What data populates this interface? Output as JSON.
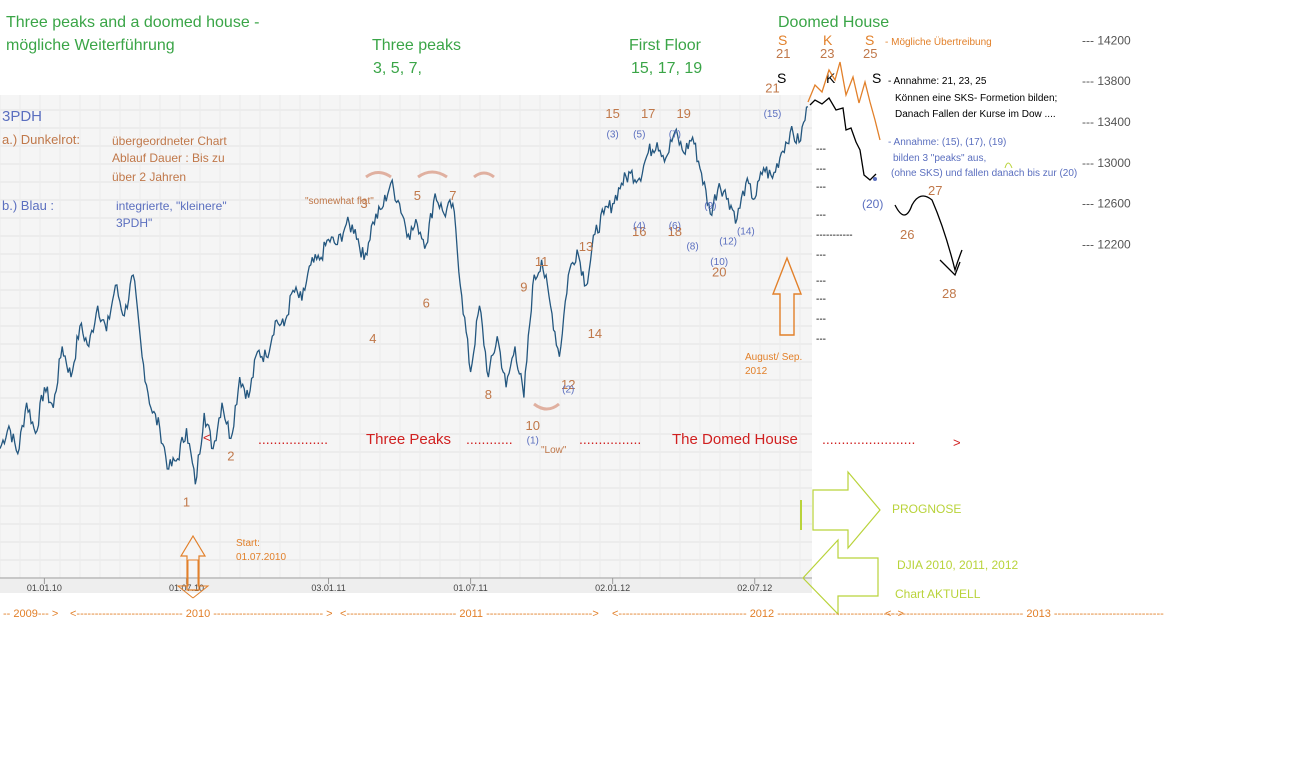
{
  "title": {
    "line1": "Three peaks and a doomed house -",
    "line2": "mögliche Weiterführung"
  },
  "headers": {
    "three_peaks": "Three peaks",
    "three_peaks_nums": "3, 5, 7,",
    "first_floor": "First Floor",
    "first_floor_nums": "15, 17, 19",
    "doomed_house": "Doomed  House"
  },
  "legend": {
    "tag": "3PDH",
    "a_label": "a.) Dunkelrot:",
    "a_text": [
      "übergeordneter Chart",
      "Ablauf Dauer :    Bis zu",
      "über 2 Jahren"
    ],
    "b_label": "b.) Blau       :",
    "b_text": [
      "integrierte, \"kleinere\"",
      "3PDH\""
    ]
  },
  "chart_data": {
    "type": "line",
    "series": [
      {
        "values": [
          [
            0,
            10200
          ],
          [
            1,
            10420
          ],
          [
            2,
            10150
          ],
          [
            3,
            10650
          ],
          [
            4,
            10350
          ],
          [
            5,
            10800
          ],
          [
            6,
            10600
          ],
          [
            7,
            11200
          ],
          [
            8,
            10900
          ],
          [
            9,
            11400
          ],
          [
            10,
            11200
          ],
          [
            11,
            11600
          ],
          [
            12,
            11350
          ],
          [
            13,
            11800
          ],
          [
            14,
            11500
          ],
          [
            15,
            11900
          ],
          [
            16,
            11100
          ],
          [
            17,
            10600
          ],
          [
            18,
            10400
          ],
          [
            19,
            10000
          ],
          [
            20,
            10100
          ],
          [
            21,
            10400
          ],
          [
            22,
            9850
          ],
          [
            23,
            10550
          ],
          [
            24,
            10200
          ],
          [
            25,
            10650
          ],
          [
            26,
            10300
          ],
          [
            27,
            10900
          ],
          [
            28,
            10700
          ],
          [
            29,
            11150
          ],
          [
            30,
            11100
          ],
          [
            31,
            11450
          ],
          [
            32,
            11400
          ],
          [
            33,
            11750
          ],
          [
            34,
            11650
          ],
          [
            35,
            12000
          ],
          [
            36,
            12050
          ],
          [
            37,
            12250
          ],
          [
            38,
            12200
          ],
          [
            39,
            12400
          ],
          [
            40,
            12350
          ],
          [
            41,
            12050
          ],
          [
            42,
            12420
          ],
          [
            43,
            12550
          ],
          [
            44,
            12800
          ],
          [
            45,
            12600
          ],
          [
            46,
            12300
          ],
          [
            47,
            12400
          ],
          [
            48,
            12200
          ],
          [
            49,
            12700
          ],
          [
            50,
            12500
          ],
          [
            51,
            12600
          ],
          [
            52,
            11700
          ],
          [
            53,
            10950
          ],
          [
            54,
            11600
          ],
          [
            55,
            10900
          ],
          [
            56,
            11300
          ],
          [
            57,
            10800
          ],
          [
            58,
            11200
          ],
          [
            59,
            10700
          ],
          [
            60,
            11800
          ],
          [
            61,
            12050
          ],
          [
            62,
            11600
          ],
          [
            63,
            11100
          ],
          [
            64,
            11900
          ],
          [
            65,
            12150
          ],
          [
            66,
            11800
          ],
          [
            67,
            12300
          ],
          [
            68,
            12500
          ],
          [
            69,
            12600
          ],
          [
            70,
            12800
          ],
          [
            71,
            12900
          ],
          [
            72,
            12850
          ],
          [
            73,
            13100
          ],
          [
            74,
            13200
          ],
          [
            75,
            13050
          ],
          [
            76,
            13300
          ],
          [
            77,
            13100
          ],
          [
            78,
            13250
          ],
          [
            79,
            12900
          ],
          [
            80,
            12500
          ],
          [
            81,
            12800
          ],
          [
            82,
            12650
          ],
          [
            83,
            12450
          ],
          [
            84,
            12800
          ],
          [
            85,
            12650
          ],
          [
            86,
            12950
          ],
          [
            87,
            12850
          ],
          [
            88,
            13100
          ],
          [
            89,
            13300
          ],
          [
            90,
            13200
          ],
          [
            91,
            13550
          ]
        ]
      }
    ],
    "xlim": [
      0,
      91
    ],
    "x_ticks": [
      {
        "x": 5,
        "label": "01.01.10"
      },
      {
        "x": 21,
        "label": "01.07.10"
      },
      {
        "x": 37,
        "label": "03.01.11"
      },
      {
        "x": 53,
        "label": "01.07.11"
      },
      {
        "x": 69,
        "label": "02.01.12"
      },
      {
        "x": 85,
        "label": "02.07.12"
      }
    ],
    "ylim": [
      9500,
      14400
    ],
    "y_ticks": [
      {
        "y": 14200,
        "label": "--- 14200"
      },
      {
        "y": 13800,
        "label": "--- 13800"
      },
      {
        "y": 13400,
        "label": "--- 13400"
      },
      {
        "y": 13000,
        "label": "--- 13000"
      },
      {
        "y": 12600,
        "label": "--- 12600"
      },
      {
        "y": 12200,
        "label": "--- 12200"
      }
    ],
    "peak_labels": [
      {
        "x": 21,
        "y": 9850,
        "text": "1",
        "below": true,
        "color": "#c0784a"
      },
      {
        "x": 26,
        "y": 10300,
        "text": "2",
        "below": true,
        "color": "#c0784a"
      },
      {
        "x": 41,
        "y": 12420,
        "text": "3",
        "below": false,
        "color": "#c0784a"
      },
      {
        "x": 42,
        "y": 11450,
        "text": "4",
        "below": true,
        "color": "#c0784a"
      },
      {
        "x": 47,
        "y": 12500,
        "text": "5",
        "below": false,
        "color": "#c0784a"
      },
      {
        "x": 48,
        "y": 11800,
        "text": "6",
        "below": true,
        "color": "#c0784a"
      },
      {
        "x": 51,
        "y": 12500,
        "text": "7",
        "below": false,
        "color": "#c0784a"
      },
      {
        "x": 55,
        "y": 10900,
        "text": "8",
        "below": true,
        "color": "#c0784a"
      },
      {
        "x": 59,
        "y": 11600,
        "text": "9",
        "below": false,
        "color": "#c0784a"
      },
      {
        "x": 60,
        "y": 10600,
        "text": "10",
        "below": true,
        "color": "#c0784a"
      },
      {
        "x": 61,
        "y": 11850,
        "text": "11",
        "below": false,
        "color": "#c0784a"
      },
      {
        "x": 64,
        "y": 11000,
        "text": "12",
        "below": true,
        "color": "#c0784a"
      },
      {
        "x": 66,
        "y": 12000,
        "text": "13",
        "below": false,
        "color": "#c0784a"
      },
      {
        "x": 67,
        "y": 11500,
        "text": "14",
        "below": true,
        "color": "#c0784a"
      },
      {
        "x": 69,
        "y": 13300,
        "text": "15",
        "below": false,
        "color": "#c0784a"
      },
      {
        "x": 72,
        "y": 12500,
        "text": "16",
        "below": true,
        "color": "#c0784a"
      },
      {
        "x": 73,
        "y": 13300,
        "text": "17",
        "below": false,
        "color": "#c0784a"
      },
      {
        "x": 76,
        "y": 12500,
        "text": "18",
        "below": true,
        "color": "#c0784a"
      },
      {
        "x": 77,
        "y": 13300,
        "text": "19",
        "below": false,
        "color": "#c0784a"
      },
      {
        "x": 81,
        "y": 12100,
        "text": "20",
        "below": true,
        "color": "#c0784a"
      },
      {
        "x": 87,
        "y": 13550,
        "text": "21",
        "below": false,
        "color": "#c0784a"
      }
    ],
    "sub_labels": [
      {
        "x": 60,
        "y": 10250,
        "text": "(1)"
      },
      {
        "x": 64,
        "y": 10750,
        "text": "(2)"
      },
      {
        "x": 69,
        "y": 13250,
        "text": "(3)"
      },
      {
        "x": 72,
        "y": 12350,
        "text": "(4)"
      },
      {
        "x": 72,
        "y": 13250,
        "text": "(5)"
      },
      {
        "x": 76,
        "y": 12350,
        "text": "(6)"
      },
      {
        "x": 76,
        "y": 13250,
        "text": "(7)"
      },
      {
        "x": 78,
        "y": 12150,
        "text": "(8)"
      },
      {
        "x": 80,
        "y": 12550,
        "text": "(9)"
      },
      {
        "x": 81,
        "y": 12000,
        "text": "(10)"
      },
      {
        "x": 82,
        "y": 12200,
        "text": "(12)"
      },
      {
        "x": 84,
        "y": 12300,
        "text": "(14)"
      },
      {
        "x": 87,
        "y": 13450,
        "text": "(15)"
      }
    ]
  },
  "notes": {
    "somewhat_flat": "\"somewhat flat\"",
    "low": "\"Low\"",
    "start_label": "Start:",
    "start_date": "01.07.2010",
    "aug_label": "August/ Sep.",
    "aug_year": "2012",
    "moegliche": "-  Mögliche Übertreibung",
    "annahme1": "- Annahme: 21, 23, 25",
    "annahme1_b": "Können eine SKS- Formetion bilden;",
    "annahme1_c": "Danach Fallen der Kurse im Dow ....",
    "annahme2": "- Annahme: (15), (17), (19)",
    "annahme2_b": "bilden 3 \"peaks\" aus,",
    "annahme2_c": "(ohne SKS) und fallen danach bis zur (20)",
    "prognose": "PROGNOSE",
    "djia": "DJIA 2010, 2011, 2012",
    "chart_aktuell": "Chart AKTUELL"
  },
  "future": {
    "labels_top": [
      "S",
      "K",
      "S"
    ],
    "nums_top": [
      "21",
      "23",
      "25"
    ],
    "labels_mid": [
      "S",
      "K",
      "S"
    ],
    "n20": "(20)",
    "n26": "26",
    "n27": "27",
    "n28": "28"
  },
  "bottom_text": {
    "three_peaks": "Three Peaks",
    "domed_house": "The Domed House"
  },
  "timeline": {
    "y2009": "-- 2009--- >",
    "y2010": "<----------------------------- 2010 ------------------------------ >",
    "y2011": "<------------------------------ 2011 ----------------------------->",
    "y2012": "<----------------------------------- 2012 -------------------------------- >",
    "y2013": "<------------------------------------ 2013 ------------------------------"
  },
  "colors": {
    "green": "#3aa547",
    "tan": "#c0784a",
    "orange": "#e2802a",
    "blue": "#5b6fbf",
    "chart_line": "#24577f",
    "red": "#d02020",
    "yellowgreen": "#b9d33a"
  }
}
